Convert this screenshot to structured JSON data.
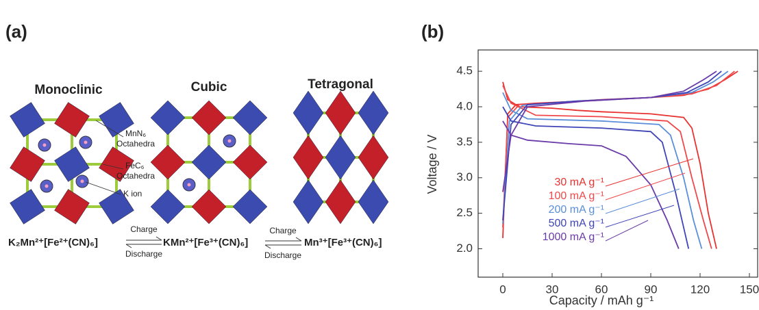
{
  "panel_a": {
    "label": "(a)",
    "phases": [
      "Monoclinic",
      "Cubic",
      "Tetragonal"
    ],
    "annotations": {
      "mnn6": "MnN₆",
      "mnn6_sub": "Octahedra",
      "fec6": "FeC₆",
      "fec6_sub": "Octahedra",
      "kion": "K ion"
    },
    "formulas": [
      "K₂Mn²⁺[Fe²⁺(CN)₆]",
      "KMn²⁺[Fe³⁺(CN)₆]",
      "Mn³⁺[Fe³⁺(CN)₆]"
    ],
    "arrows": [
      {
        "top": "Charge",
        "bottom": "Discharge"
      },
      {
        "top": "Charge",
        "bottom": "Discharge"
      }
    ]
  },
  "chart_data": {
    "type": "line",
    "panel_label": "(b)",
    "x_label": "Capacity / mAh g⁻¹",
    "y_label": "Voltage / V",
    "xlim": [
      -15,
      155
    ],
    "ylim": [
      1.6,
      4.8
    ],
    "xticks": [
      0,
      30,
      60,
      90,
      120,
      150
    ],
    "yticks": [
      {
        "value": 2,
        "label": "2.0"
      },
      2.5,
      {
        "value": 3,
        "label": "3.0"
      },
      3.5,
      {
        "value": 4,
        "label": "4.0"
      },
      4.5
    ],
    "series": [
      {
        "name": "30 mA g⁻¹",
        "color": "#e8312f",
        "x": [
          0,
          3,
          8,
          20,
          40,
          60,
          90,
          110,
          125,
          135,
          143,
          null,
          0,
          3,
          10,
          30,
          45,
          60,
          90,
          110,
          115,
          120,
          125,
          130
        ],
        "values": [
          2.15,
          3.9,
          4.03,
          4.05,
          4.07,
          4.1,
          4.13,
          4.16,
          4.25,
          4.38,
          4.5,
          null,
          4.35,
          4.1,
          4.0,
          3.98,
          3.95,
          3.93,
          3.9,
          3.85,
          3.7,
          3.2,
          2.5,
          2.0
        ]
      },
      {
        "name": "100 mA g⁻¹",
        "color": "#f0484a",
        "x": [
          0,
          3,
          10,
          40,
          90,
          115,
          130,
          141,
          null,
          0,
          5,
          20,
          60,
          100,
          108,
          115,
          122,
          127
        ],
        "values": [
          2.3,
          3.85,
          4.03,
          4.07,
          4.13,
          4.18,
          4.3,
          4.5,
          null,
          4.3,
          4.05,
          3.88,
          3.86,
          3.8,
          3.65,
          3.0,
          2.4,
          2.0
        ]
      },
      {
        "name": "200 mA g⁻¹",
        "color": "#5b8ed8",
        "x": [
          0,
          4,
          12,
          40,
          90,
          115,
          128,
          137,
          null,
          0,
          5,
          15,
          60,
          95,
          102,
          110,
          116,
          121
        ],
        "values": [
          2.35,
          3.8,
          4.02,
          4.07,
          4.13,
          4.2,
          4.35,
          4.5,
          null,
          4.2,
          3.95,
          3.83,
          3.8,
          3.75,
          3.6,
          3.0,
          2.4,
          2.0
        ]
      },
      {
        "name": "500 mA g⁻¹",
        "color": "#3e44b8",
        "x": [
          0,
          5,
          15,
          45,
          90,
          112,
          125,
          133,
          null,
          0,
          5,
          20,
          60,
          90,
          97,
          105,
          110,
          113
        ],
        "values": [
          2.4,
          3.75,
          4.03,
          4.08,
          4.13,
          4.2,
          4.35,
          4.5,
          null,
          4.0,
          3.8,
          3.73,
          3.7,
          3.65,
          3.5,
          2.8,
          2.3,
          2.0
        ]
      },
      {
        "name": "1000 mA g⁻¹",
        "color": "#6a3aa8",
        "x": [
          0,
          5,
          15,
          50,
          90,
          110,
          122,
          130,
          null,
          0,
          5,
          15,
          40,
          60,
          75,
          90,
          100,
          107
        ],
        "values": [
          2.8,
          3.6,
          4.0,
          4.08,
          4.13,
          4.22,
          4.38,
          4.5,
          null,
          3.8,
          3.6,
          3.53,
          3.48,
          3.45,
          3.3,
          2.9,
          2.4,
          2.0
        ]
      }
    ]
  }
}
